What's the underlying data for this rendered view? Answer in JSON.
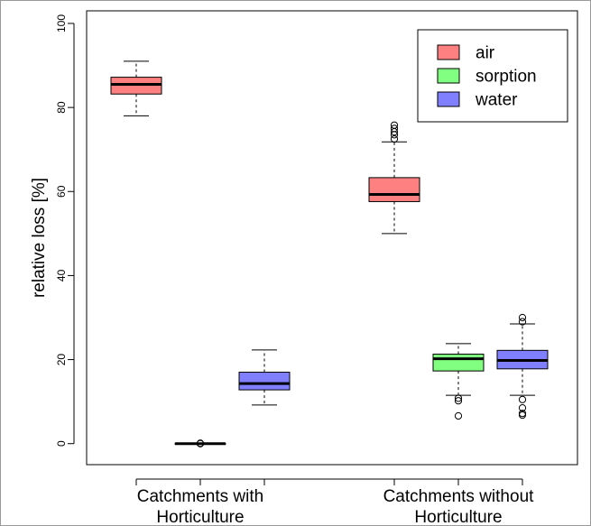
{
  "chart_data": {
    "type": "boxplot",
    "title": "",
    "xlabel": "",
    "ylabel": "relative loss [%]",
    "ylim": [
      -5,
      103
    ],
    "yticks": [
      0,
      20,
      40,
      60,
      80,
      100
    ],
    "categories": [
      "Catchments with Horticulture",
      "Catchments without Horticulture"
    ],
    "category_lines": [
      [
        "Catchments with",
        "Horticulture"
      ],
      [
        "Catchments without",
        "Horticulture"
      ]
    ],
    "legend": {
      "position": "top-right",
      "entries": [
        {
          "name": "air",
          "color": "#ff8080"
        },
        {
          "name": "sorption",
          "color": "#80ff80"
        },
        {
          "name": "water",
          "color": "#8080ff"
        }
      ]
    },
    "boxes": [
      {
        "category": "Catchments with Horticulture",
        "series": "air",
        "color": "#ff8080",
        "whisker_low": 78,
        "q1": 83.2,
        "median": 85.5,
        "q3": 87.2,
        "whisker_high": 91,
        "outliers": []
      },
      {
        "category": "Catchments with Horticulture",
        "series": "sorption",
        "color": "#80ff80",
        "whisker_low": 0,
        "q1": 0,
        "median": 0,
        "q3": 0,
        "whisker_high": 0,
        "outliers": [
          0,
          0.1
        ]
      },
      {
        "category": "Catchments with Horticulture",
        "series": "water",
        "color": "#8080ff",
        "whisker_low": 9.2,
        "q1": 12.8,
        "median": 14.3,
        "q3": 17,
        "whisker_high": 22.3,
        "outliers": []
      },
      {
        "category": "Catchments without Horticulture",
        "series": "air",
        "color": "#ff8080",
        "whisker_low": 50,
        "q1": 57.6,
        "median": 59.3,
        "q3": 63.3,
        "whisker_high": 71.8,
        "outliers": [
          72.5,
          73.5,
          74.2,
          75,
          75.8
        ]
      },
      {
        "category": "Catchments without Horticulture",
        "series": "sorption",
        "color": "#80ff80",
        "whisker_low": 11.5,
        "q1": 17.3,
        "median": 20.2,
        "q3": 21.3,
        "whisker_high": 23.8,
        "outliers": [
          10.2,
          10.8,
          6.6
        ]
      },
      {
        "category": "Catchments without Horticulture",
        "series": "water",
        "color": "#8080ff",
        "whisker_low": 11.5,
        "q1": 17.8,
        "median": 19.8,
        "q3": 22.2,
        "whisker_high": 28.5,
        "outliers": [
          29,
          30,
          10.5,
          8.5,
          7.2,
          6.8
        ]
      }
    ]
  }
}
